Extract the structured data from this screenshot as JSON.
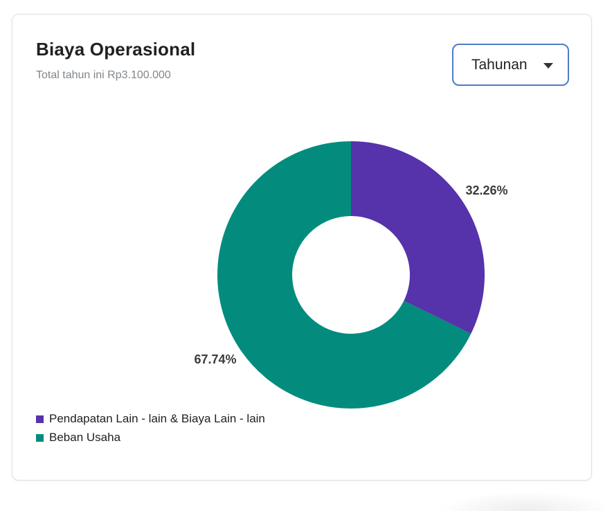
{
  "card": {
    "period_selector": {
      "value": "Tahunan"
    }
  },
  "chart_data": {
    "type": "pie",
    "variant": "donut",
    "title": "Biaya Operasional",
    "subtitle": "Total tahun ini Rp3.100.000",
    "total_this_year": "Rp3.100.000",
    "start_angle_deg": 0,
    "direction": "clockwise",
    "legend_position": "bottom-left",
    "series": [
      {
        "name": "Pendapatan Lain - lain & Biaya Lain - lain",
        "value": 32.26,
        "label": "32.26%",
        "color": "#5632ab"
      },
      {
        "name": "Beban Usaha",
        "value": 67.74,
        "label": "67.74%",
        "color": "#038c7e"
      }
    ]
  }
}
